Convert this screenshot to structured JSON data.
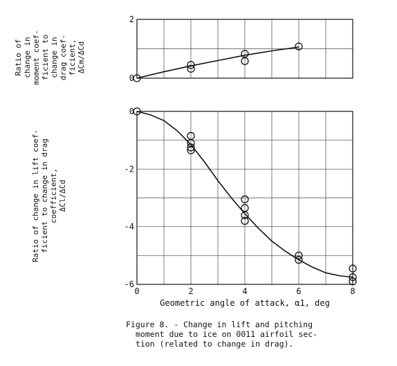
{
  "chart_data": [
    {
      "type": "scatter",
      "ylabel_lines": [
        "Ratio of",
        "change in",
        "moment coef-",
        "ficient to",
        "change in",
        "drag coef-",
        "ficient,"
      ],
      "ylabel_symbol": "ΔCm/ΔCd",
      "xlim": [
        0,
        8
      ],
      "ylim": [
        0,
        2
      ],
      "y_ticks": [
        0,
        2
      ],
      "y_tick_labels": [
        "0",
        "2"
      ],
      "grid": true,
      "points": [
        {
          "x": 0,
          "y": 0
        },
        {
          "x": 2,
          "y": 0.45
        },
        {
          "x": 2,
          "y": 0.32
        },
        {
          "x": 4,
          "y": 0.83
        },
        {
          "x": 4,
          "y": 0.58
        },
        {
          "x": 6,
          "y": 1.08
        }
      ],
      "curve": [
        {
          "x": 0,
          "y": 0
        },
        {
          "x": 1,
          "y": 0.22
        },
        {
          "x": 2,
          "y": 0.42
        },
        {
          "x": 3,
          "y": 0.6
        },
        {
          "x": 4,
          "y": 0.78
        },
        {
          "x": 5,
          "y": 0.93
        },
        {
          "x": 6,
          "y": 1.06
        }
      ]
    },
    {
      "type": "scatter",
      "ylabel_lines": [
        "Ratio of change in lift coef-",
        "ficient to change in drag",
        "coefficient,"
      ],
      "ylabel_symbol": "ΔCl/ΔCd",
      "xlabel": "Geometric angle of attack, α1, deg",
      "xlim": [
        0,
        8
      ],
      "ylim": [
        -6,
        0
      ],
      "x_ticks": [
        0,
        2,
        4,
        6,
        8
      ],
      "x_tick_labels": [
        "0",
        "2",
        "4",
        "6",
        "8"
      ],
      "y_ticks": [
        0,
        -2,
        -4,
        -6
      ],
      "y_tick_labels": [
        "0",
        "-2",
        "-4",
        "-6"
      ],
      "grid": true,
      "points": [
        {
          "x": 0,
          "y": 0
        },
        {
          "x": 2,
          "y": -0.85
        },
        {
          "x": 2,
          "y": -1.1
        },
        {
          "x": 2,
          "y": -1.25
        },
        {
          "x": 2,
          "y": -1.35
        },
        {
          "x": 4,
          "y": -3.05
        },
        {
          "x": 4,
          "y": -3.35
        },
        {
          "x": 4,
          "y": -3.6
        },
        {
          "x": 4,
          "y": -3.8
        },
        {
          "x": 6,
          "y": -5.0
        },
        {
          "x": 6,
          "y": -5.15
        },
        {
          "x": 8,
          "y": -5.45
        },
        {
          "x": 8,
          "y": -5.75
        },
        {
          "x": 8,
          "y": -5.9
        }
      ],
      "curve": [
        {
          "x": 0,
          "y": 0
        },
        {
          "x": 0.5,
          "y": -0.12
        },
        {
          "x": 1,
          "y": -0.32
        },
        {
          "x": 1.5,
          "y": -0.68
        },
        {
          "x": 2,
          "y": -1.15
        },
        {
          "x": 2.5,
          "y": -1.75
        },
        {
          "x": 3,
          "y": -2.4
        },
        {
          "x": 3.5,
          "y": -3.0
        },
        {
          "x": 4,
          "y": -3.55
        },
        {
          "x": 4.5,
          "y": -4.05
        },
        {
          "x": 5,
          "y": -4.5
        },
        {
          "x": 5.5,
          "y": -4.85
        },
        {
          "x": 6,
          "y": -5.15
        },
        {
          "x": 6.5,
          "y": -5.4
        },
        {
          "x": 7,
          "y": -5.6
        },
        {
          "x": 7.5,
          "y": -5.7
        },
        {
          "x": 8,
          "y": -5.75
        }
      ]
    }
  ],
  "caption": {
    "lines": [
      "Figure 8. - Change in lift and pitching",
      "moment due to ice on 0011 airfoil sec-",
      "tion (related to change in drag)."
    ]
  }
}
